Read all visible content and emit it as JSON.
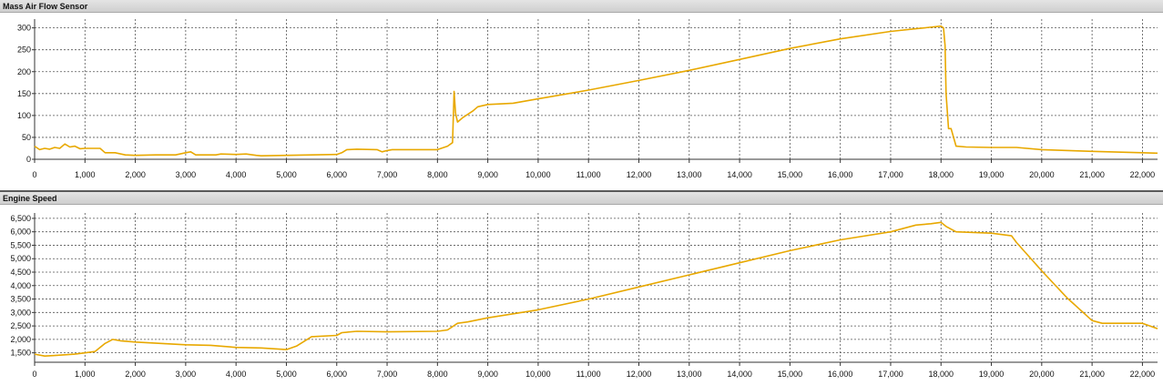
{
  "chart_data": [
    {
      "type": "line",
      "title": "Mass Air Flow Sensor",
      "xlabel": "",
      "ylabel": "",
      "xlim": [
        0,
        22300
      ],
      "ylim": [
        0,
        320
      ],
      "grid": true,
      "line_color": "#E8A800",
      "y_ticks": [
        0,
        50,
        100,
        150,
        200,
        250,
        300
      ],
      "y_tick_labels": [
        "0",
        "50",
        "100",
        "150",
        "200",
        "250",
        "300"
      ],
      "x_ticks": [
        0,
        1000,
        2000,
        3000,
        4000,
        5000,
        6000,
        7000,
        8000,
        9000,
        10000,
        11000,
        12000,
        13000,
        14000,
        15000,
        16000,
        17000,
        18000,
        19000,
        20000,
        21000,
        22000
      ],
      "x_tick_labels": [
        "0",
        "1,000",
        "2,000",
        "3,000",
        "4,000",
        "5,000",
        "6,000",
        "7,000",
        "8,000",
        "9,000",
        "10,000",
        "11,000",
        "12,000",
        "13,000",
        "14,000",
        "15,000",
        "16,000",
        "17,000",
        "18,000",
        "19,000",
        "20,000",
        "21,000",
        "22,000"
      ],
      "series": [
        {
          "name": "",
          "x": [
            0,
            100,
            200,
            300,
            400,
            500,
            600,
            700,
            800,
            900,
            1000,
            1300,
            1400,
            1600,
            1800,
            2000,
            2400,
            2800,
            3000,
            3100,
            3200,
            3600,
            3700,
            4000,
            4200,
            4400,
            4500,
            5000,
            5500,
            6000,
            6100,
            6200,
            6400,
            6800,
            6900,
            7000,
            7100,
            7500,
            7800,
            8000,
            8200,
            8300,
            8330,
            8360,
            8400,
            8500,
            8700,
            8800,
            9000,
            9500,
            10000,
            11000,
            12000,
            13000,
            14000,
            15000,
            16000,
            17000,
            17500,
            18000,
            18050,
            18080,
            18100,
            18150,
            18200,
            18300,
            18500,
            19000,
            19500,
            20000,
            21000,
            22000,
            22300
          ],
          "y": [
            30,
            22,
            25,
            23,
            27,
            25,
            35,
            28,
            30,
            24,
            25,
            25,
            15,
            15,
            10,
            9,
            10,
            10,
            15,
            17,
            10,
            10,
            12,
            11,
            12,
            9,
            8,
            9,
            10,
            11,
            15,
            22,
            23,
            22,
            17,
            20,
            22,
            22,
            22,
            22,
            30,
            38,
            155,
            105,
            85,
            95,
            110,
            120,
            125,
            128,
            138,
            158,
            180,
            203,
            228,
            253,
            275,
            292,
            298,
            304,
            300,
            260,
            150,
            70,
            70,
            30,
            28,
            27,
            27,
            22,
            18,
            15,
            14
          ]
        }
      ]
    },
    {
      "type": "line",
      "title": "Engine Speed",
      "xlabel": "",
      "ylabel": "",
      "xlim": [
        0,
        22300
      ],
      "ylim": [
        1150,
        6700
      ],
      "grid": true,
      "line_color": "#E8A800",
      "y_ticks": [
        1500,
        2000,
        2500,
        3000,
        3500,
        4000,
        4500,
        5000,
        5500,
        6000,
        6500
      ],
      "y_tick_labels": [
        "1,500",
        "2,000",
        "2,500",
        "3,000",
        "3,500",
        "4,000",
        "4,500",
        "5,000",
        "5,500",
        "6,000",
        "6,500"
      ],
      "x_ticks": [
        0,
        1000,
        2000,
        3000,
        4000,
        5000,
        6000,
        7000,
        8000,
        9000,
        10000,
        11000,
        12000,
        13000,
        14000,
        15000,
        16000,
        17000,
        18000,
        19000,
        20000,
        21000,
        22000
      ],
      "x_tick_labels": [
        "0",
        "1,000",
        "2,000",
        "3,000",
        "4,000",
        "5,000",
        "6,000",
        "7,000",
        "8,000",
        "9,000",
        "10,000",
        "11,000",
        "12,000",
        "13,000",
        "14,000",
        "15,000",
        "16,000",
        "17,000",
        "18,000",
        "19,000",
        "20,000",
        "21,000",
        "22,000"
      ],
      "series": [
        {
          "name": "",
          "x": [
            0,
            200,
            400,
            800,
            1000,
            1200,
            1400,
            1550,
            1700,
            2000,
            2500,
            3000,
            3500,
            4000,
            4500,
            5000,
            5200,
            5500,
            6000,
            6100,
            6400,
            7000,
            8000,
            8200,
            8400,
            8600,
            9000,
            10000,
            11000,
            12000,
            13000,
            14000,
            15000,
            16000,
            17000,
            17500,
            17800,
            18000,
            18100,
            18300,
            19000,
            19400,
            19500,
            20000,
            20500,
            21000,
            21200,
            22000,
            22300
          ],
          "y": [
            1450,
            1380,
            1400,
            1450,
            1500,
            1550,
            1850,
            2000,
            1950,
            1900,
            1850,
            1800,
            1780,
            1700,
            1680,
            1620,
            1750,
            2100,
            2150,
            2250,
            2300,
            2280,
            2300,
            2350,
            2600,
            2650,
            2800,
            3100,
            3500,
            3950,
            4400,
            4850,
            5300,
            5700,
            6000,
            6250,
            6300,
            6350,
            6200,
            6000,
            5950,
            5850,
            5600,
            4550,
            3550,
            2700,
            2600,
            2600,
            2400
          ]
        }
      ]
    }
  ]
}
